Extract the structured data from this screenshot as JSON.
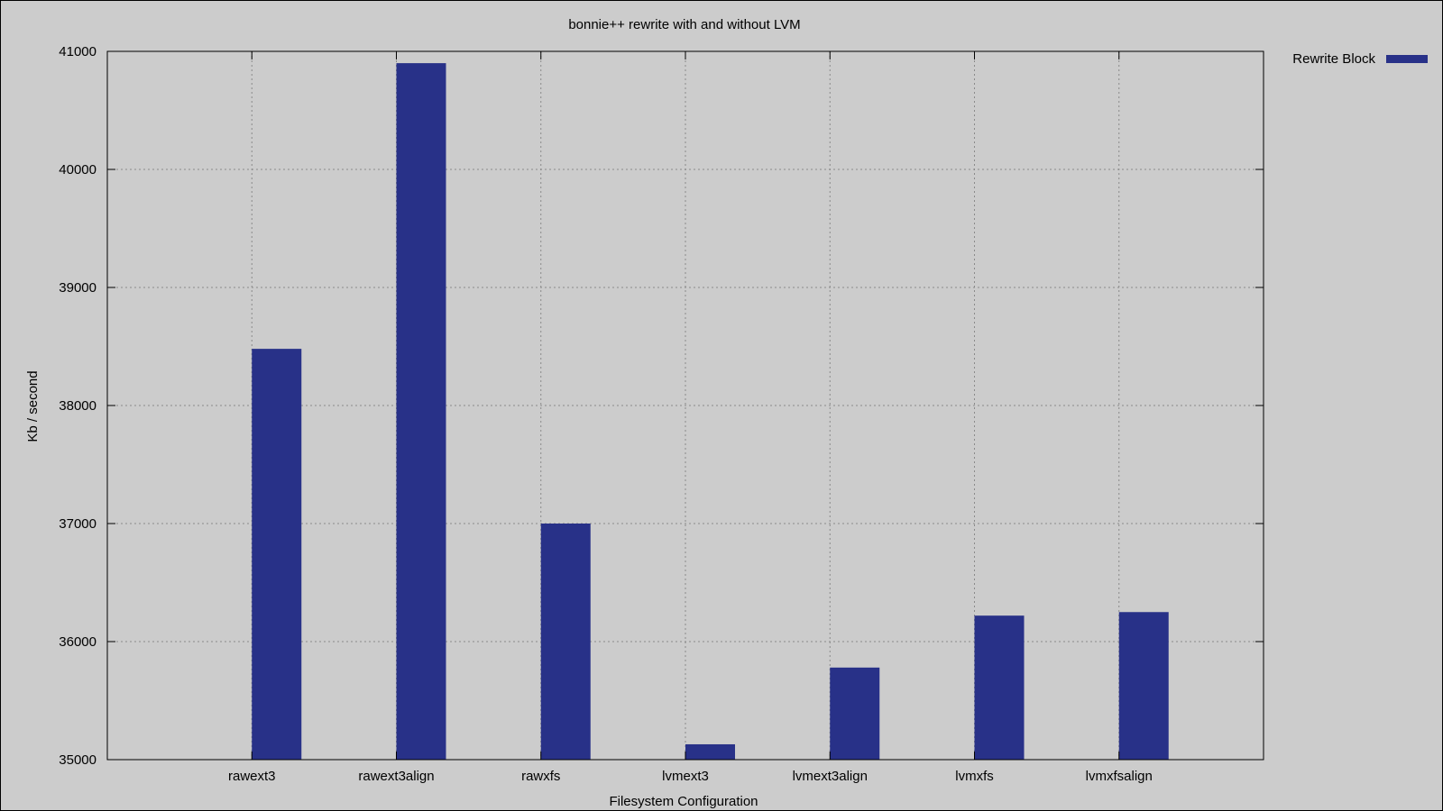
{
  "chart_data": {
    "type": "bar",
    "title": "bonnie++ rewrite with and without LVM",
    "xlabel": "Filesystem Configuration",
    "ylabel": "Kb / second",
    "categories": [
      "rawext3",
      "rawext3align",
      "rawxfs",
      "lvmext3",
      "lvmext3align",
      "lvmxfs",
      "lvmxfsalign"
    ],
    "series": [
      {
        "name": "Rewrite Block",
        "color": "#283188",
        "values": [
          38480,
          40900,
          37000,
          35130,
          35780,
          36220,
          36250
        ]
      }
    ],
    "ylim": [
      35000,
      41000
    ],
    "yticks": [
      35000,
      36000,
      37000,
      38000,
      39000,
      40000,
      41000
    ],
    "grid": true,
    "legend_position": "top-right-outside"
  }
}
